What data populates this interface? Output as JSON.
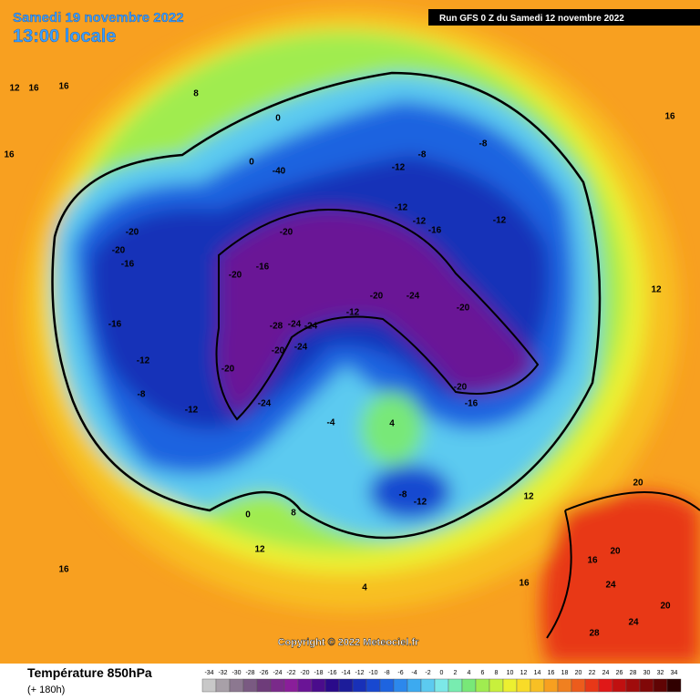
{
  "header": {
    "date": "Samedi 19 novembre 2022",
    "time": "13:00 locale",
    "run": "Run GFS 0 Z du Samedi 12 novembre 2022"
  },
  "copyright": "Copyright © 2022 Meteociel.fr",
  "footer": {
    "title": "Température 850hPa",
    "lead": "(+ 180h)"
  },
  "legend": [
    {
      "value": -34,
      "color": "#c8c8c8"
    },
    {
      "value": -32,
      "color": "#a8a0a8"
    },
    {
      "value": -30,
      "color": "#8c7890"
    },
    {
      "value": -28,
      "color": "#7a5a82"
    },
    {
      "value": -26,
      "color": "#6e3c7a"
    },
    {
      "value": -24,
      "color": "#7a2a8a"
    },
    {
      "value": -22,
      "color": "#8a1e9a"
    },
    {
      "value": -20,
      "color": "#6a1496"
    },
    {
      "value": -18,
      "color": "#4a0c8c"
    },
    {
      "value": -16,
      "color": "#2a0a8a"
    },
    {
      "value": -14,
      "color": "#1c1c9a"
    },
    {
      "value": -12,
      "color": "#1830b8"
    },
    {
      "value": -10,
      "color": "#1848d0"
    },
    {
      "value": -8,
      "color": "#1e64e0"
    },
    {
      "value": -6,
      "color": "#2c88ec"
    },
    {
      "value": -4,
      "color": "#3caaf0"
    },
    {
      "value": -2,
      "color": "#5ccaf0"
    },
    {
      "value": 0,
      "color": "#7ce8e8"
    },
    {
      "value": 2,
      "color": "#78ecb0"
    },
    {
      "value": 4,
      "color": "#78e878"
    },
    {
      "value": 6,
      "color": "#a0ec50"
    },
    {
      "value": 8,
      "color": "#c8f03c"
    },
    {
      "value": 10,
      "color": "#ecf030"
    },
    {
      "value": 12,
      "color": "#f8dc28"
    },
    {
      "value": 14,
      "color": "#f8c024"
    },
    {
      "value": 16,
      "color": "#f8a020"
    },
    {
      "value": 18,
      "color": "#f08020"
    },
    {
      "value": 20,
      "color": "#ec5c1c"
    },
    {
      "value": 22,
      "color": "#e83818"
    },
    {
      "value": 24,
      "color": "#e01818"
    },
    {
      "value": 26,
      "color": "#c01010"
    },
    {
      "value": 28,
      "color": "#a00c0c"
    },
    {
      "value": 30,
      "color": "#800808"
    },
    {
      "value": 32,
      "color": "#600404"
    },
    {
      "value": 34,
      "color": "#300000"
    }
  ],
  "contour_labels": [
    16,
    16,
    8,
    0,
    0,
    -40,
    -12,
    -8,
    -8,
    -12,
    -20,
    -20,
    -16,
    -16,
    -12,
    -16,
    -20,
    -20,
    -28,
    -24,
    -24,
    -24,
    -20,
    -20,
    -24,
    -12,
    -12,
    -16,
    -20,
    -20,
    -24,
    -20,
    -16,
    -12,
    -12,
    -8,
    -4,
    0,
    -12,
    -8,
    4,
    4,
    8,
    12,
    12,
    16,
    16,
    20,
    20,
    24,
    24,
    28,
    20,
    16,
    12,
    16,
    16,
    12
  ]
}
